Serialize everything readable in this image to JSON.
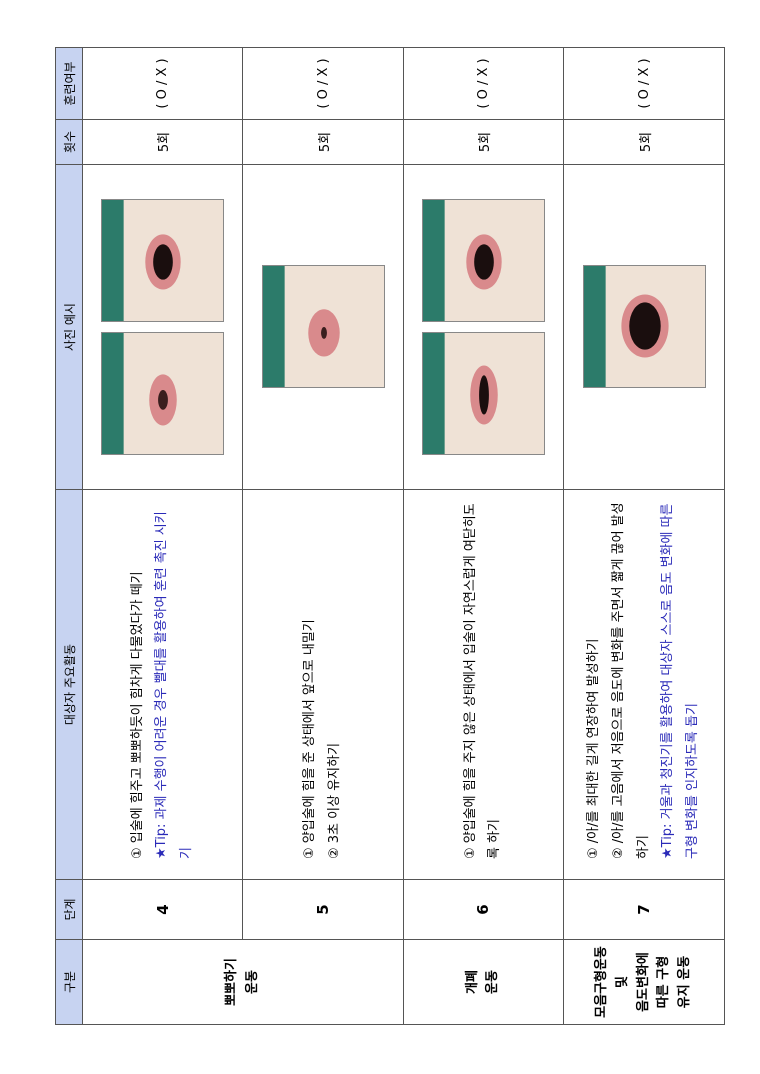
{
  "table": {
    "headers": [
      "구분",
      "단계",
      "대상자 주요활동",
      "사진 예시",
      "횟수",
      "훈련여부"
    ],
    "rows": [
      {
        "category": "뽀뽀하기\n운동",
        "step": "4",
        "items": [
          "① 입술에 힘주고 뽀뽀하듯이 힘차게 다물었다가 떼기"
        ],
        "tip": "★Tip: 과제 수행이 어려운 경우 빨대를 활용하여 훈련 촉진 시키기",
        "count": "5회",
        "check": "( O / X )"
      },
      {
        "step": "5",
        "items": [
          "① 양입술에 힘을 준 상태에서 앞으로 내밀기",
          "② 3초 이상 유지하기"
        ],
        "count": "5회",
        "check": "( O / X )"
      },
      {
        "category": "개폐\n운동",
        "step": "6",
        "items": [
          "① 양입술에 힘을 주지 않은 상태에서 입술이 자연스럽게 여닫히도록 하기"
        ],
        "count": "5회",
        "check": "( O / X )"
      },
      {
        "category": "모음구형운동\n및\n음도변화에\n따른 구형\n유지 운동",
        "step": "7",
        "items": [
          "① /아/를 최대한 길게 연장하여 발성하기",
          "② /아/를 고음에서 저음으로 음도에 변화를 주면서 짧게 끊어 발성하기"
        ],
        "tip": "★Tip: 거울과 청진기를 활용하여 대상자 스스로 음도 변화에 따른 구형 변화를 인지하도록 돕기",
        "count": "5회",
        "check": "( O / X )"
      }
    ]
  }
}
